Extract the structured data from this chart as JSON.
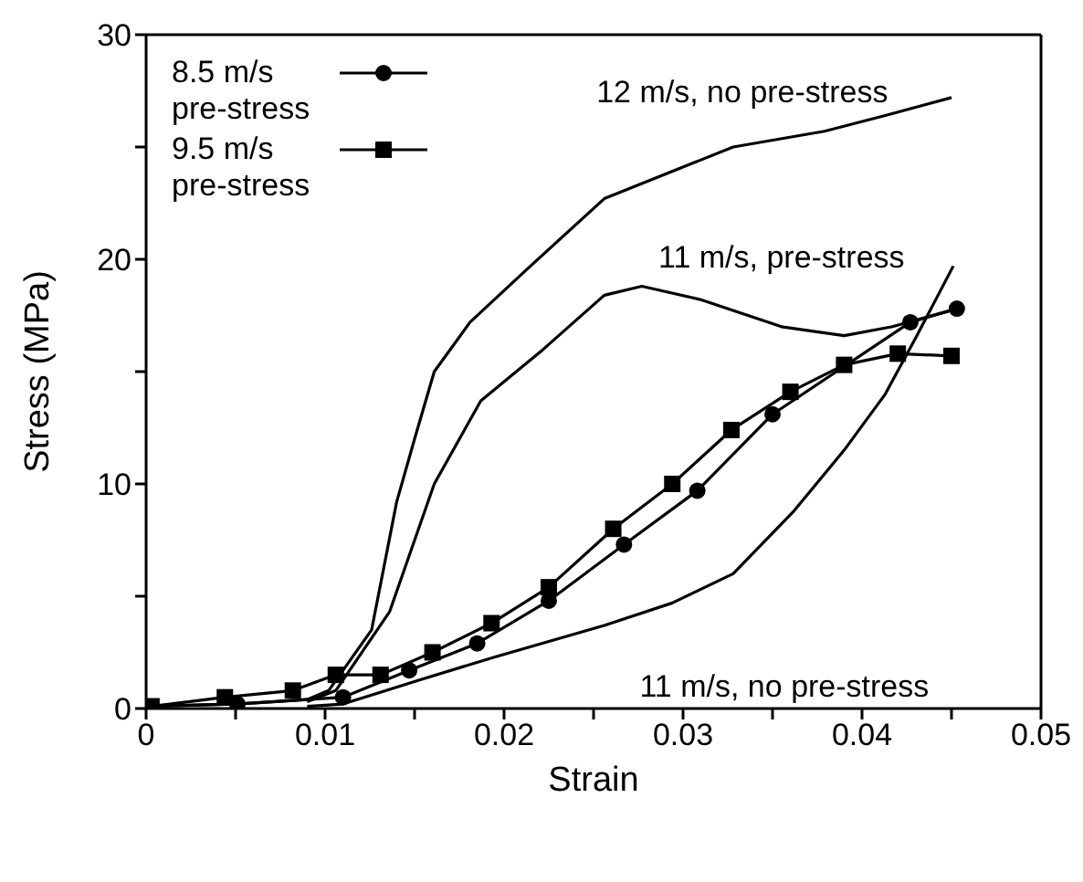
{
  "chart_data": {
    "type": "line",
    "xlabel": "Strain",
    "ylabel": "Stress (MPa)",
    "xlim": [
      0,
      0.05
    ],
    "ylim": [
      0,
      30
    ],
    "xticks": [
      0,
      {
        "value": 0.005,
        "label": null
      },
      0.01,
      {
        "value": 0.015,
        "label": null
      },
      0.02,
      {
        "value": 0.025,
        "label": null
      },
      0.03,
      {
        "value": 0.035,
        "label": null
      },
      0.04,
      {
        "value": 0.045,
        "label": null
      },
      0.05
    ],
    "yticks": [
      0,
      {
        "value": 5,
        "label": null
      },
      10,
      {
        "value": 15,
        "label": null
      },
      20,
      {
        "value": 25,
        "label": null
      },
      30
    ],
    "grid": false,
    "legend": "top left",
    "line_style": "solid",
    "series": [
      {
        "name": "8.5 m/s pre-stress",
        "color": "#000000",
        "marker": "circle",
        "x": [
          0,
          0.0051,
          0.011,
          0.0147,
          0.0185,
          0.0225,
          0.0267,
          0.0308,
          0.035,
          0.0427,
          0.0453
        ],
        "values": [
          0.1,
          0.2,
          0.5,
          1.7,
          2.9,
          4.8,
          7.3,
          9.7,
          13.1,
          17.2,
          17.8
        ]
      },
      {
        "name": "9.5 m/s pre-stress",
        "color": "#000000",
        "marker": "square",
        "x": [
          0.0003,
          0.0044,
          0.0082,
          0.0106,
          0.0131,
          0.016,
          0.0193,
          0.0225,
          0.0261,
          0.0294,
          0.0327,
          0.036,
          0.039,
          0.042,
          0.045
        ],
        "values": [
          0.1,
          0.5,
          0.8,
          1.5,
          1.5,
          2.5,
          3.8,
          5.4,
          8.0,
          10.0,
          12.4,
          14.1,
          15.3,
          15.8,
          15.7
        ]
      },
      {
        "name": "12 m/s, no pre-stress",
        "color": "#000000",
        "marker": "none",
        "x": [
          0,
          0.005,
          0.009,
          0.0102,
          0.0126,
          0.014,
          0.015,
          0.0161,
          0.0181,
          0.0212,
          0.0256,
          0.0328,
          0.0379,
          0.0413,
          0.045
        ],
        "values": [
          0.1,
          0.2,
          0.4,
          0.8,
          3.5,
          9.2,
          12,
          15,
          17.2,
          19.5,
          22.7,
          25,
          25.7,
          26.4,
          27.2
        ]
      },
      {
        "name": "11 m/s, pre-stress",
        "color": "#000000",
        "marker": "none",
        "x": [
          0.009,
          0.0106,
          0.0136,
          0.0161,
          0.0187,
          0.0222,
          0.0256,
          0.0277,
          0.031,
          0.0355,
          0.039,
          0.0417,
          0.0453
        ],
        "values": [
          0.3,
          0.8,
          4.3,
          10,
          13.7,
          16,
          18.4,
          18.8,
          18.2,
          17,
          16.6,
          17,
          17.8
        ]
      },
      {
        "name": "11 m/s, no pre-stress",
        "color": "#000000",
        "marker": "none",
        "x": [
          0.009,
          0.011,
          0.0154,
          0.0195,
          0.0256,
          0.0294,
          0.0328,
          0.0362,
          0.039,
          0.0413,
          0.043,
          0.0451
        ],
        "values": [
          0.1,
          0.2,
          1.3,
          2.3,
          3.7,
          4.7,
          6,
          8.8,
          11.5,
          14,
          16.5,
          19.7
        ]
      }
    ]
  }
}
